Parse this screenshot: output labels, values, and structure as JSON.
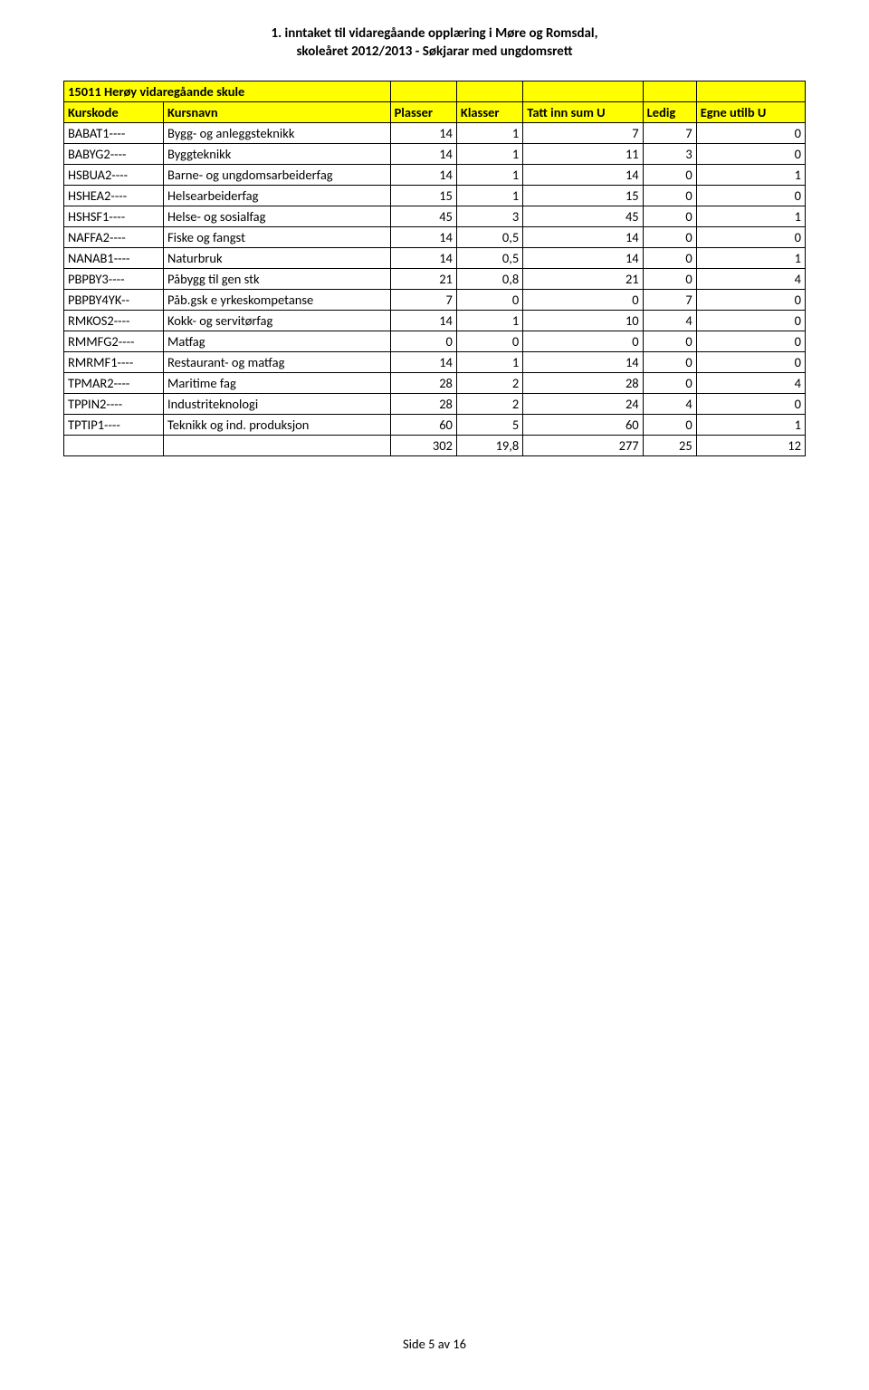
{
  "header": {
    "line1": "1. inntaket til vidaregåande opplæring i Møre og Romsdal,",
    "line2": "skoleåret 2012/2013 - Søkjarar med ungdomsrett"
  },
  "colors": {
    "highlight": "#ffff00",
    "border": "#000000",
    "background": "#ffffff",
    "text": "#000000"
  },
  "table": {
    "title": "15011 Herøy vidaregåande skule",
    "columns": {
      "code": "Kurskode",
      "name": "Kursnavn",
      "plasser": "Plasser",
      "klasser": "Klasser",
      "sum": "Tatt inn sum U",
      "ledig": "Ledig",
      "utilb": "Egne utilb U"
    },
    "rows": [
      {
        "code": "BABAT1----",
        "name": "Bygg- og anleggsteknikk",
        "plasser": 14,
        "klasser": 1,
        "sum": 7,
        "ledig": 7,
        "utilb": 0
      },
      {
        "code": "BABYG2----",
        "name": "Byggteknikk",
        "plasser": 14,
        "klasser": 1,
        "sum": 11,
        "ledig": 3,
        "utilb": 0
      },
      {
        "code": "HSBUA2----",
        "name": "Barne- og ungdomsarbeiderfag",
        "plasser": 14,
        "klasser": 1,
        "sum": 14,
        "ledig": 0,
        "utilb": 1
      },
      {
        "code": "HSHEA2----",
        "name": "Helsearbeiderfag",
        "plasser": 15,
        "klasser": 1,
        "sum": 15,
        "ledig": 0,
        "utilb": 0
      },
      {
        "code": "HSHSF1----",
        "name": "Helse- og sosialfag",
        "plasser": 45,
        "klasser": 3,
        "sum": 45,
        "ledig": 0,
        "utilb": 1
      },
      {
        "code": "NAFFA2----",
        "name": "Fiske og fangst",
        "plasser": 14,
        "klasser": "0,5",
        "sum": 14,
        "ledig": 0,
        "utilb": 0
      },
      {
        "code": "NANAB1----",
        "name": "Naturbruk",
        "plasser": 14,
        "klasser": "0,5",
        "sum": 14,
        "ledig": 0,
        "utilb": 1
      },
      {
        "code": "PBPBY3----",
        "name": "Påbygg til gen stk",
        "plasser": 21,
        "klasser": "0,8",
        "sum": 21,
        "ledig": 0,
        "utilb": 4
      },
      {
        "code": "PBPBY4YK--",
        "name": "Påb.gsk e yrkeskompetanse",
        "plasser": 7,
        "klasser": 0,
        "sum": 0,
        "ledig": 7,
        "utilb": 0
      },
      {
        "code": "RMKOS2----",
        "name": "Kokk- og servitørfag",
        "plasser": 14,
        "klasser": 1,
        "sum": 10,
        "ledig": 4,
        "utilb": 0
      },
      {
        "code": "RMMFG2----",
        "name": "Matfag",
        "plasser": 0,
        "klasser": 0,
        "sum": 0,
        "ledig": 0,
        "utilb": 0
      },
      {
        "code": "RMRMF1----",
        "name": "Restaurant- og matfag",
        "plasser": 14,
        "klasser": 1,
        "sum": 14,
        "ledig": 0,
        "utilb": 0
      },
      {
        "code": "TPMAR2----",
        "name": "Maritime fag",
        "plasser": 28,
        "klasser": 2,
        "sum": 28,
        "ledig": 0,
        "utilb": 4
      },
      {
        "code": "TPPIN2----",
        "name": "Industriteknologi",
        "plasser": 28,
        "klasser": 2,
        "sum": 24,
        "ledig": 4,
        "utilb": 0
      },
      {
        "code": "TPTIP1----",
        "name": "Teknikk og ind. produksjon",
        "plasser": 60,
        "klasser": 5,
        "sum": 60,
        "ledig": 0,
        "utilb": 1
      }
    ],
    "totals": {
      "plasser": 302,
      "klasser": "19,8",
      "sum": 277,
      "ledig": 25,
      "utilb": 12
    }
  },
  "footer": "Side 5 av 16"
}
